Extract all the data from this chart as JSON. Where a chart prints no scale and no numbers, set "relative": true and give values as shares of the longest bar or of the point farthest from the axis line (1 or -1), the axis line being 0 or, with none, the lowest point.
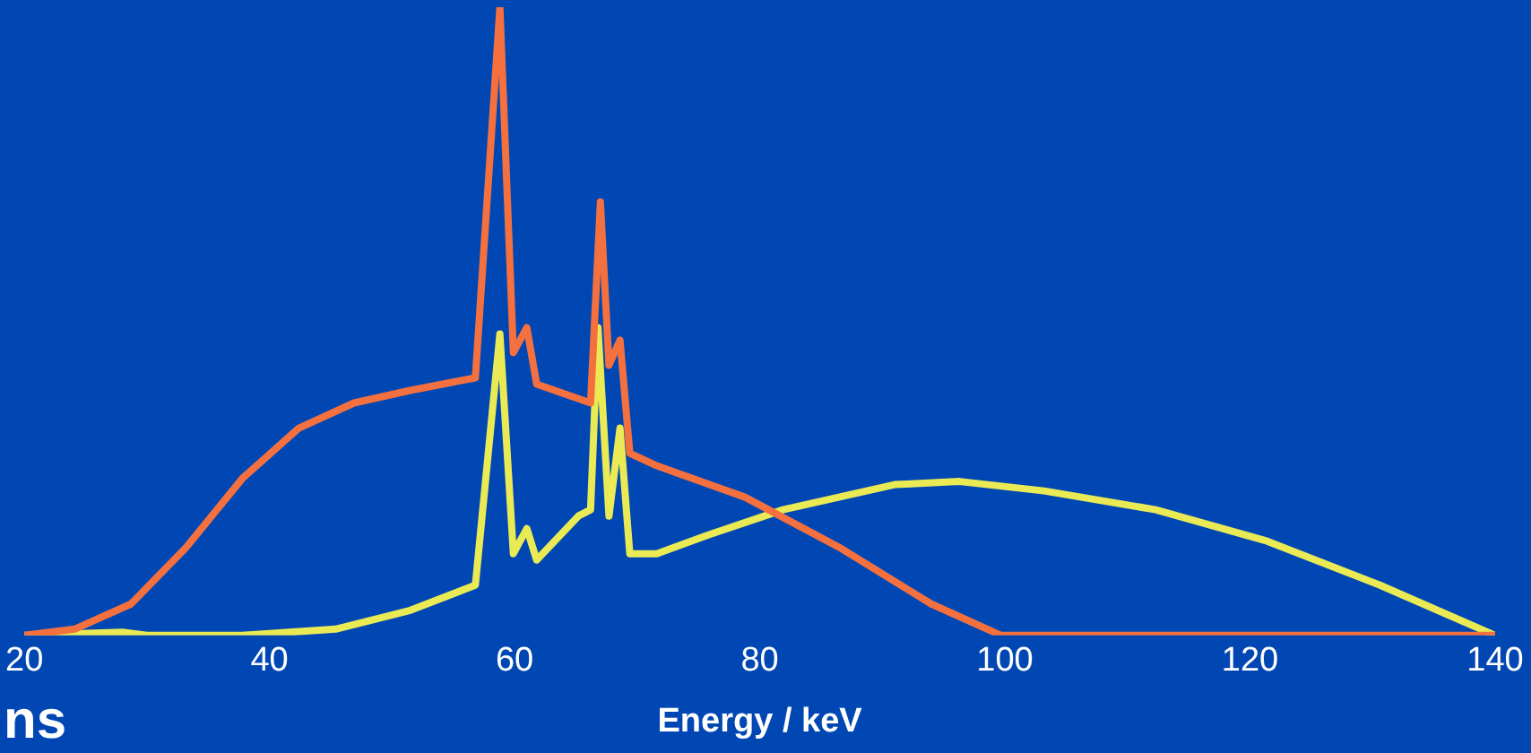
{
  "chart_data": {
    "type": "line",
    "relative": true,
    "xlabel": "Energy / keV",
    "xlim": [
      20,
      140
    ],
    "xticks": [
      20,
      40,
      60,
      80,
      100,
      120,
      140
    ],
    "grid": false,
    "legend": false,
    "marker": "none",
    "line_style": "solid",
    "annotations": [
      "ns"
    ],
    "series": [
      {
        "color": "#f4703f",
        "x": [
          20,
          24.1,
          28.7,
          33.2,
          37.8,
          42.4,
          46.9,
          51.5,
          56.8,
          58.8,
          59.9,
          61,
          61.8,
          66.2,
          67,
          67.7,
          68.6,
          69.4,
          71.6,
          78.8,
          86.5,
          94,
          99.7,
          140
        ],
        "values": [
          0,
          0.01,
          0.05,
          0.14,
          0.25,
          0.33,
          0.37,
          0.39,
          0.41,
          1,
          0.45,
          0.49,
          0.4,
          0.37,
          0.69,
          0.43,
          0.47,
          0.29,
          0.27,
          0.22,
          0.14,
          0.05,
          0,
          0
        ]
      },
      {
        "color": "#eaea55",
        "x": [
          20,
          28,
          30,
          37.8,
          45.4,
          51.5,
          56.8,
          58.8,
          59.9,
          61,
          61.8,
          65.2,
          66.2,
          66.8,
          67.7,
          68.6,
          69.4,
          71.6,
          75.8,
          81.9,
          91,
          96.3,
          103.2,
          112.3,
          121.4,
          130.6,
          140
        ],
        "values": [
          0,
          0.005,
          0,
          0,
          0.01,
          0.04,
          0.08,
          0.48,
          0.13,
          0.17,
          0.12,
          0.19,
          0.2,
          0.49,
          0.19,
          0.33,
          0.13,
          0.13,
          0.16,
          0.2,
          0.24,
          0.245,
          0.23,
          0.2,
          0.15,
          0.08,
          0
        ]
      }
    ]
  }
}
